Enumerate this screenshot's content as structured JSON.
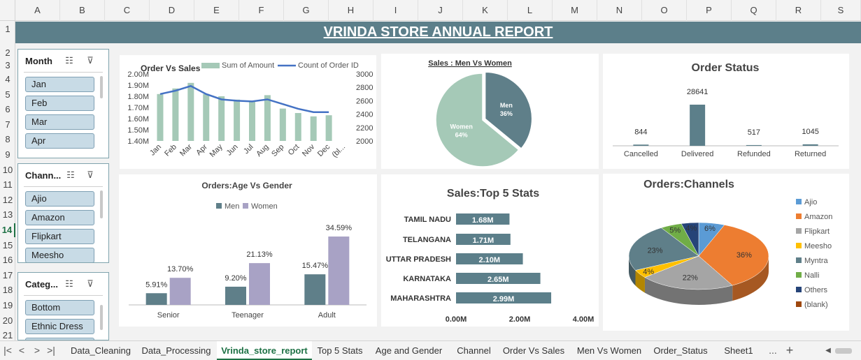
{
  "columns": [
    "A",
    "B",
    "C",
    "D",
    "E",
    "F",
    "G",
    "H",
    "I",
    "J",
    "K",
    "L",
    "M",
    "N",
    "O",
    "P",
    "Q",
    "R",
    "S"
  ],
  "rows": [
    "1",
    "2",
    "3",
    "4",
    "5",
    "6",
    "7",
    "8",
    "9",
    "10",
    "11",
    "12",
    "13",
    "14",
    "15",
    "16",
    "17",
    "18",
    "19",
    "20",
    "21",
    "22"
  ],
  "selected_row": "14",
  "report_title": "VRINDA STORE ANNUAL REPORT",
  "slicers": [
    {
      "title": "Month",
      "items": [
        "Jan",
        "Feb",
        "Mar",
        "Apr"
      ]
    },
    {
      "title": "Chann...",
      "items": [
        "Ajio",
        "Amazon",
        "Flipkart",
        "Meesho"
      ]
    },
    {
      "title": "Categ...",
      "items": [
        "Bottom",
        "Ethnic Dress",
        ""
      ]
    }
  ],
  "icons": {
    "multiselect": "multi-select-icon",
    "clear_filter": "clear-filter-icon"
  },
  "colors": {
    "teal": "#5c7f8a",
    "men": "#5f7f89",
    "women": "#a8a2c5",
    "green_bar": "#a5c9b7",
    "line": "#4472c4",
    "accent": "#1e7145"
  },
  "chart_data": [
    {
      "type": "bar+line",
      "title": "Order Vs Sales",
      "categories": [
        "Jan",
        "Feb",
        "Mar",
        "Apr",
        "May",
        "Jun",
        "Jul",
        "Aug",
        "Sep",
        "Oct",
        "Nov",
        "Dec",
        "(bl..."
      ],
      "series": [
        {
          "name": "Sum of Amount",
          "type": "bar",
          "values": [
            1.82,
            1.87,
            1.92,
            1.82,
            1.8,
            1.77,
            1.76,
            1.81,
            1.69,
            1.65,
            1.62,
            1.63,
            null
          ]
        },
        {
          "name": "Count of Order ID",
          "type": "line",
          "axis": "secondary",
          "values": [
            2700,
            2750,
            2820,
            2700,
            2620,
            2600,
            2590,
            2620,
            2550,
            2480,
            2430,
            2430,
            null
          ]
        }
      ],
      "y_ticks": [
        "2.00M",
        "1.90M",
        "1.80M",
        "1.70M",
        "1.60M",
        "1.50M",
        "1.40M"
      ],
      "y2_ticks": [
        "3000",
        "2800",
        "2600",
        "2400",
        "2200",
        "2000"
      ],
      "ylim": [
        1.4,
        2.0
      ],
      "y2lim": [
        2000,
        3000
      ]
    },
    {
      "type": "pie",
      "title": "Sales : Men Vs Women",
      "slices": [
        {
          "label": "Men",
          "value": 36,
          "text": "36%"
        },
        {
          "label": "Women",
          "value": 64,
          "text": "64%"
        }
      ]
    },
    {
      "type": "bar",
      "title": "Order Status",
      "categories": [
        "Cancelled",
        "Delivered",
        "Refunded",
        "Returned"
      ],
      "values": [
        844,
        28641,
        517,
        1045
      ]
    },
    {
      "type": "bar",
      "title": "Orders:Age Vs Gender",
      "categories": [
        "Senior",
        "Teenager",
        "Adult"
      ],
      "series": [
        {
          "name": "Men",
          "values": [
            5.91,
            9.2,
            15.47
          ],
          "labels": [
            "5.91%",
            "9.20%",
            "15.47%"
          ]
        },
        {
          "name": "Women",
          "values": [
            13.7,
            21.13,
            34.59
          ],
          "labels": [
            "13.70%",
            "21.13%",
            "34.59%"
          ]
        }
      ]
    },
    {
      "type": "bar",
      "orientation": "horizontal",
      "title": "Sales:Top 5 Stats",
      "categories": [
        "TAMIL NADU",
        "TELANGANA",
        "UTTAR PRADESH",
        "KARNATAKA",
        "MAHARASHTRA"
      ],
      "values": [
        1.68,
        1.71,
        2.1,
        2.65,
        2.99
      ],
      "labels": [
        "1.68M",
        "1.71M",
        "2.10M",
        "2.65M",
        "2.99M"
      ],
      "x_ticks": [
        "0.00M",
        "2.00M",
        "4.00M"
      ],
      "xlim": [
        0,
        4
      ]
    },
    {
      "type": "pie",
      "title": "Orders:Channels",
      "style": "3d",
      "legend": [
        "Ajio",
        "Amazon",
        "Flipkart",
        "Meesho",
        "Myntra",
        "Nalli",
        "Others",
        "(blank)"
      ],
      "values": [
        6,
        36,
        22,
        4,
        23,
        5,
        4,
        0
      ],
      "labels": [
        "6%",
        "36%",
        "22%",
        "4%",
        "23%",
        "5%",
        "4%",
        ""
      ],
      "colors": [
        "#5b9bd5",
        "#ed7d31",
        "#a5a5a5",
        "#ffc000",
        "#5f7f89",
        "#70ad47",
        "#264478",
        "#9e480e"
      ]
    }
  ],
  "sheet_tabs": [
    "Data_Cleaning",
    "Data_Processing",
    "Vrinda_store_report",
    "Top 5 Stats",
    "Age and Gender",
    "Channel",
    "Order Vs Sales",
    "Men Vs Women",
    "Order_Status",
    "Sheet1"
  ],
  "active_tab": "Vrinda_store_report",
  "tab_controls": {
    "first": "|<",
    "prev": "<",
    "next": ">",
    "last": ">|",
    "more": "...",
    "add": "+"
  }
}
